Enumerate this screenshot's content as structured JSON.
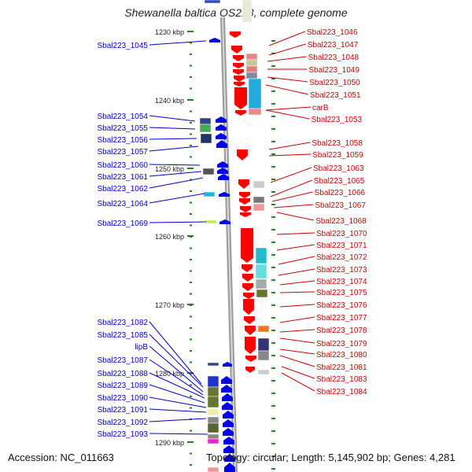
{
  "title": "Shewanella baltica OS223, complete genome",
  "footer": {
    "accession": "Accession: NC_011663",
    "summary": "Topology: circular; Length: 5,145,902 bp; Genes: 4,281"
  },
  "ruler": {
    "ticks": [
      "1230 kbp",
      "1240 kbp",
      "1250 kbp",
      "1260 kbp",
      "1270 kbp",
      "1280 kbp",
      "1290 kbp"
    ]
  },
  "colors": {
    "forward_label": "#cc0000",
    "reverse_label": "#0000cc",
    "forward_gene": "#ff0000",
    "reverse_gene": "#0000ee",
    "backbone": "#9a9a9a",
    "tick": "#1a8a1a"
  },
  "reverse_genes": [
    "Sbal223_1045",
    "Sbal223_1054",
    "Sbal223_1055",
    "Sbal223_1056",
    "Sbal223_1057",
    "Sbal223_1060",
    "Sbal223_1061",
    "Sbal223_1062",
    "Sbal223_1064",
    "Sbal223_1069",
    "Sbal223_1082",
    "Sbal223_1085",
    "lipB",
    "Sbal223_1087",
    "Sbal223_1088",
    "Sbal223_1089",
    "Sbal223_1090",
    "Sbal223_1091",
    "Sbal223_1092",
    "Sbal223_1093"
  ],
  "forward_genes": [
    "Sbal223_1046",
    "Sbal223_1047",
    "Sbal223_1048",
    "Sbal223_1049",
    "Sbal223_1050",
    "Sbal223_1051",
    "carB",
    "Sbal223_1053",
    "Sbal223_1058",
    "Sbal223_1059",
    "Sbal223_1063",
    "Sbal223_1065",
    "Sbal223_1066",
    "Sbal223_1067",
    "Sbal223_1068",
    "Sbal223_1070",
    "Sbal223_1071",
    "Sbal223_1072",
    "Sbal223_1073",
    "Sbal223_1074",
    "Sbal223_1075",
    "Sbal223_1076",
    "Sbal223_1077",
    "Sbal223_1078",
    "Sbal223_1079",
    "Sbal223_1080",
    "Sbal223_1081",
    "Sbal223_1083",
    "Sbal223_1084"
  ]
}
